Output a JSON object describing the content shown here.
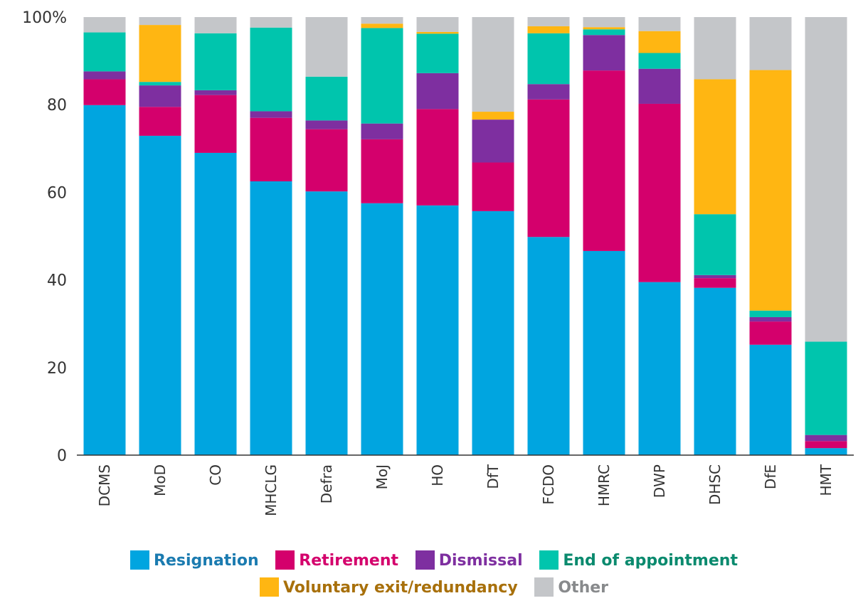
{
  "chart_data": {
    "type": "bar",
    "stacked": true,
    "title": "",
    "xlabel": "",
    "ylabel": "",
    "ylim": [
      0,
      100
    ],
    "yticks": [
      0,
      20,
      40,
      60,
      80,
      100
    ],
    "ytick_labels": [
      "0",
      "20",
      "40",
      "60",
      "80",
      "100%"
    ],
    "categories": [
      "DCMS",
      "MoD",
      "CO",
      "MHCLG",
      "Defra",
      "MoJ",
      "HO",
      "DfT",
      "FCDO",
      "HMRC",
      "DWP",
      "DHSC",
      "DfE",
      "HMT"
    ],
    "series": [
      {
        "name": "Resignation",
        "color": "#00a5e0",
        "label_color": "#1b7bb0",
        "values": [
          79.9,
          72.9,
          69.0,
          62.5,
          60.2,
          57.5,
          57.0,
          55.7,
          49.8,
          46.6,
          39.5,
          38.2,
          25.2,
          1.6
        ]
      },
      {
        "name": "Retirement",
        "color": "#d4006c",
        "label_color": "#d4006c",
        "values": [
          5.9,
          6.6,
          13.2,
          14.5,
          14.2,
          14.6,
          22.0,
          11.1,
          31.4,
          41.2,
          40.7,
          2.2,
          5.3,
          1.6
        ]
      },
      {
        "name": "Dismissal",
        "color": "#7e2fa0",
        "label_color": "#7e2fa0",
        "values": [
          1.8,
          4.9,
          1.1,
          1.5,
          2.0,
          3.6,
          8.2,
          9.8,
          3.5,
          8.1,
          8.0,
          0.7,
          1.0,
          1.4
        ]
      },
      {
        "name": "End of appointment",
        "color": "#00c5ad",
        "label_color": "#0a8a6e",
        "values": [
          8.9,
          0.8,
          13.0,
          19.1,
          10.0,
          21.8,
          9.0,
          0.0,
          11.6,
          1.3,
          3.6,
          13.9,
          1.5,
          21.3
        ]
      },
      {
        "name": "Voluntary exit/redundancy",
        "color": "#ffb612",
        "label_color": "#a8700b",
        "values": [
          0.0,
          13.0,
          0.0,
          0.0,
          0.0,
          1.0,
          0.4,
          1.8,
          1.6,
          0.5,
          5.0,
          30.8,
          54.9,
          0.0
        ]
      },
      {
        "name": "Other",
        "color": "#c4c6c9",
        "label_color": "#888a8c",
        "values": [
          3.5,
          1.8,
          3.7,
          2.4,
          13.6,
          1.5,
          3.4,
          21.6,
          2.1,
          2.3,
          3.2,
          14.2,
          12.1,
          74.1
        ]
      }
    ],
    "grid": false,
    "legend_position": "bottom"
  }
}
